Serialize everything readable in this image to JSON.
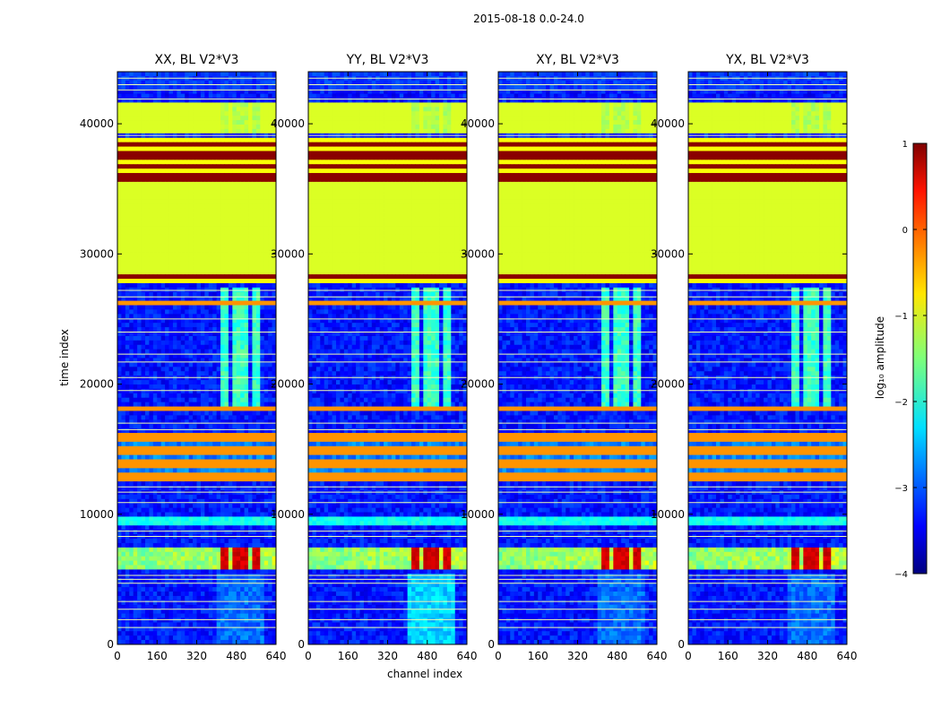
{
  "figure_title": "2015-08-18 0.0-24.0",
  "chart_data": {
    "type": "heatmap",
    "xlabel": "channel index",
    "ylabel": "time index",
    "xlim": [
      0,
      640
    ],
    "ylim": [
      0,
      44000
    ],
    "xticks": [
      0,
      160,
      320,
      480,
      640
    ],
    "yticks": [
      0,
      10000,
      20000,
      30000,
      40000
    ],
    "colorscale": "jet",
    "colorbar": {
      "label": "log₁₀ amplitude",
      "range": [
        -4,
        1
      ],
      "ticks": [
        1,
        0,
        -1,
        -2,
        -3,
        -4
      ],
      "tick_labels": [
        "1",
        "0",
        "−1",
        "−2",
        "−3",
        "−4"
      ]
    },
    "panels": [
      {
        "title": "XX, BL V2*V3",
        "polarization": "XX"
      },
      {
        "title": "YY, BL V2*V3",
        "polarization": "YY"
      },
      {
        "title": "XY, BL V2*V3",
        "polarization": "XY"
      },
      {
        "title": "YX, BL V2*V3",
        "polarization": "YX"
      }
    ],
    "approx_features_log10_amplitude": {
      "background": -3.3,
      "flagged_green_blocks_time": [
        [
          28500,
          32300
        ],
        [
          32300,
          35500
        ],
        [
          39300,
          41600
        ]
      ],
      "flagged_dark_red_bands_time": [
        [
          27800,
          28400
        ],
        [
          35500,
          39000
        ]
      ],
      "orange_bands_time": [
        [
          12600,
          16200
        ],
        [
          18000,
          18200
        ],
        [
          26100,
          26300
        ]
      ],
      "bright_rfi_time": [
        [
          5500,
          7500
        ]
      ],
      "active_channel_range": [
        410,
        600
      ]
    }
  }
}
